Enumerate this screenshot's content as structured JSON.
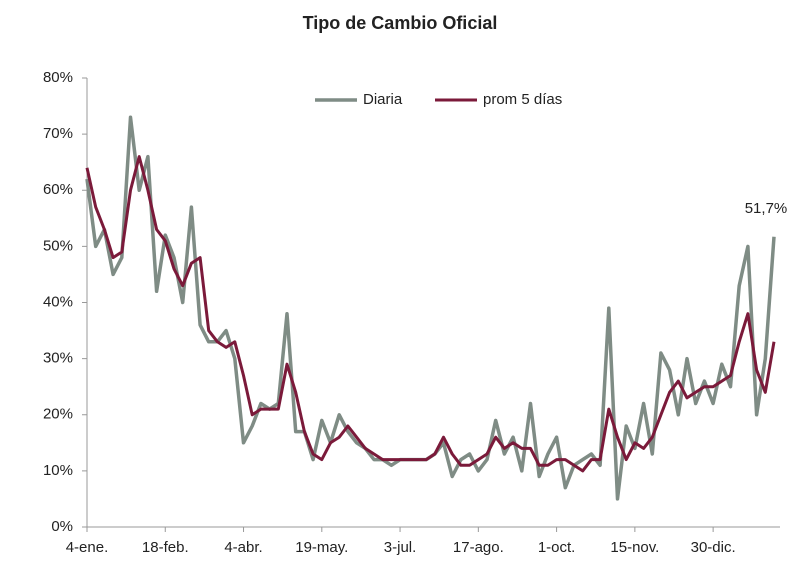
{
  "chart_data": {
    "type": "line",
    "title": "Tipo de Cambio Oficial",
    "categories": [
      "4-ene.",
      null,
      null,
      null,
      null,
      null,
      null,
      null,
      null,
      "18-feb.",
      null,
      null,
      null,
      null,
      null,
      null,
      null,
      null,
      "4-abr.",
      null,
      null,
      null,
      null,
      null,
      null,
      null,
      null,
      "19-may.",
      null,
      null,
      null,
      null,
      null,
      null,
      null,
      null,
      "3-jul.",
      null,
      null,
      null,
      null,
      null,
      null,
      null,
      null,
      "17-ago.",
      null,
      null,
      null,
      null,
      null,
      null,
      null,
      null,
      "1-oct.",
      null,
      null,
      null,
      null,
      null,
      null,
      null,
      null,
      "15-nov.",
      null,
      null,
      null,
      null,
      null,
      null,
      null,
      null,
      "30-dic.",
      null,
      null,
      null,
      null,
      null,
      null,
      null
    ],
    "series": [
      {
        "name": "Diaria",
        "color": "#7f8c85",
        "values": [
          62,
          50,
          53,
          45,
          48,
          73,
          60,
          66,
          42,
          52,
          48,
          40,
          57,
          36,
          33,
          33,
          35,
          30,
          15,
          18,
          22,
          21,
          22,
          38,
          17,
          17,
          12,
          19,
          15,
          20,
          17,
          15,
          14,
          12,
          12,
          11,
          12,
          12,
          12,
          12,
          13,
          15,
          9,
          12,
          13,
          10,
          12,
          19,
          13,
          16,
          10,
          22,
          9,
          13,
          16,
          7,
          11,
          12,
          13,
          11,
          39,
          5,
          18,
          14,
          22,
          13,
          31,
          28,
          20,
          30,
          22,
          26,
          22,
          29,
          25,
          43,
          50,
          20,
          30,
          51.7
        ],
        "value_labels": [
          null,
          null,
          null,
          null,
          null,
          null,
          null,
          null,
          null,
          null,
          null,
          null,
          null,
          null,
          null,
          null,
          null,
          null,
          null,
          null,
          null,
          null,
          null,
          null,
          null,
          null,
          null,
          null,
          null,
          null,
          null,
          null,
          null,
          null,
          null,
          null,
          null,
          null,
          null,
          null,
          null,
          null,
          null,
          null,
          null,
          null,
          null,
          null,
          null,
          null,
          null,
          null,
          null,
          null,
          null,
          null,
          null,
          null,
          null,
          null,
          null,
          null,
          null,
          null,
          null,
          null,
          null,
          null,
          null,
          null,
          null,
          null,
          null,
          null,
          null,
          null,
          null,
          null,
          null,
          "51,7%"
        ]
      },
      {
        "name": "prom 5 días",
        "color": "#7b1a3a",
        "values": [
          64,
          57,
          53,
          48,
          49,
          60,
          66,
          60,
          53,
          51,
          46,
          43,
          47,
          48,
          35,
          33,
          32,
          33,
          27,
          20,
          21,
          21,
          21,
          29,
          24,
          17,
          13,
          12,
          15,
          16,
          18,
          16,
          14,
          13,
          12,
          12,
          12,
          12,
          12,
          12,
          13,
          16,
          13,
          11,
          11,
          12,
          13,
          16,
          14,
          15,
          14,
          14,
          11,
          11,
          12,
          12,
          11,
          10,
          12,
          12,
          21,
          16,
          12,
          15,
          14,
          16,
          20,
          24,
          26,
          23,
          24,
          25,
          25,
          26,
          27,
          33,
          38,
          28,
          24,
          33
        ]
      }
    ],
    "ylim": [
      0,
      80
    ],
    "yticks": [
      {
        "value": 0,
        "label": "0%"
      },
      {
        "value": 10,
        "label": "10%"
      },
      {
        "value": 20,
        "label": "20%"
      },
      {
        "value": 30,
        "label": "30%"
      },
      {
        "value": 40,
        "label": "40%"
      },
      {
        "value": 50,
        "label": "50%"
      },
      {
        "value": 60,
        "label": "60%"
      },
      {
        "value": 70,
        "label": "70%"
      },
      {
        "value": 80,
        "label": "80%"
      }
    ],
    "grid": false,
    "legend": "top"
  }
}
